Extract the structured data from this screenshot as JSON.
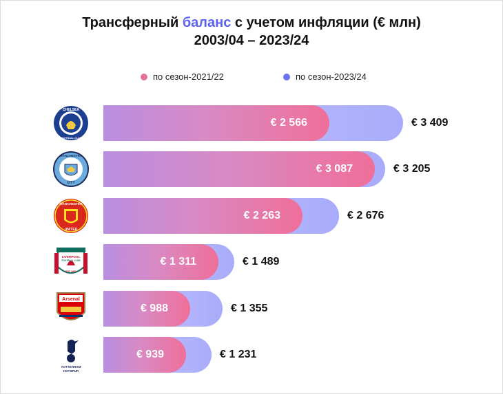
{
  "header": {
    "title_part1": "Трансферный ",
    "title_highlight": "баланс",
    "title_part2": " с учетом инфляции (€ млн)",
    "subtitle": "2003/04 – 2023/24"
  },
  "colors": {
    "accent": "#5b63f0",
    "series_2021": "#e2739f",
    "series_2023": "#6b72f2"
  },
  "chart_data": {
    "type": "bar",
    "orientation": "horizontal",
    "title": "Трансферный баланс с учетом инфляции (€ млн) 2003/04 – 2023/24",
    "categories": [
      "Chelsea",
      "Manchester City",
      "Manchester United",
      "Liverpool",
      "Arsenal",
      "Tottenham Hotspur"
    ],
    "series": [
      {
        "name": "по сезон-2021/22",
        "values": [
          2566,
          3087,
          2263,
          1311,
          988,
          939
        ],
        "labels": [
          "€ 2 566",
          "€ 3 087",
          "€ 2 263",
          "€ 1 311",
          "€ 988",
          "€ 939"
        ]
      },
      {
        "name": "по сезон-2023/24",
        "values": [
          3409,
          3205,
          2676,
          1489,
          1355,
          1231
        ],
        "labels": [
          "€ 3 409",
          "€ 3 205",
          "€ 2 676",
          "€ 1 489",
          "€ 1 355",
          "€ 1 231"
        ]
      }
    ],
    "legend": "top",
    "grid": false
  },
  "logos": [
    {
      "name": "chelsea-logo",
      "icon": "chelsea-crest",
      "texts": [
        "CHELSEA",
        "FOOTBALL CLUB"
      ]
    },
    {
      "name": "manchester-city-logo",
      "icon": "man-city-crest",
      "texts": [
        "MANCHESTER",
        "CITY"
      ]
    },
    {
      "name": "manchester-united-logo",
      "icon": "man-utd-crest",
      "texts": [
        "MANCHESTER",
        "UNITED"
      ]
    },
    {
      "name": "liverpool-logo",
      "icon": "liverpool-crest",
      "texts": [
        "LIVERPOOL",
        "FOOTBALL CLUB",
        "EST 1892"
      ]
    },
    {
      "name": "arsenal-logo",
      "icon": "arsenal-crest",
      "texts": [
        "Arsenal"
      ]
    },
    {
      "name": "tottenham-logo",
      "icon": "tottenham-crest",
      "texts": [
        "TOTTENHAM",
        "HOTSPUR"
      ]
    }
  ]
}
